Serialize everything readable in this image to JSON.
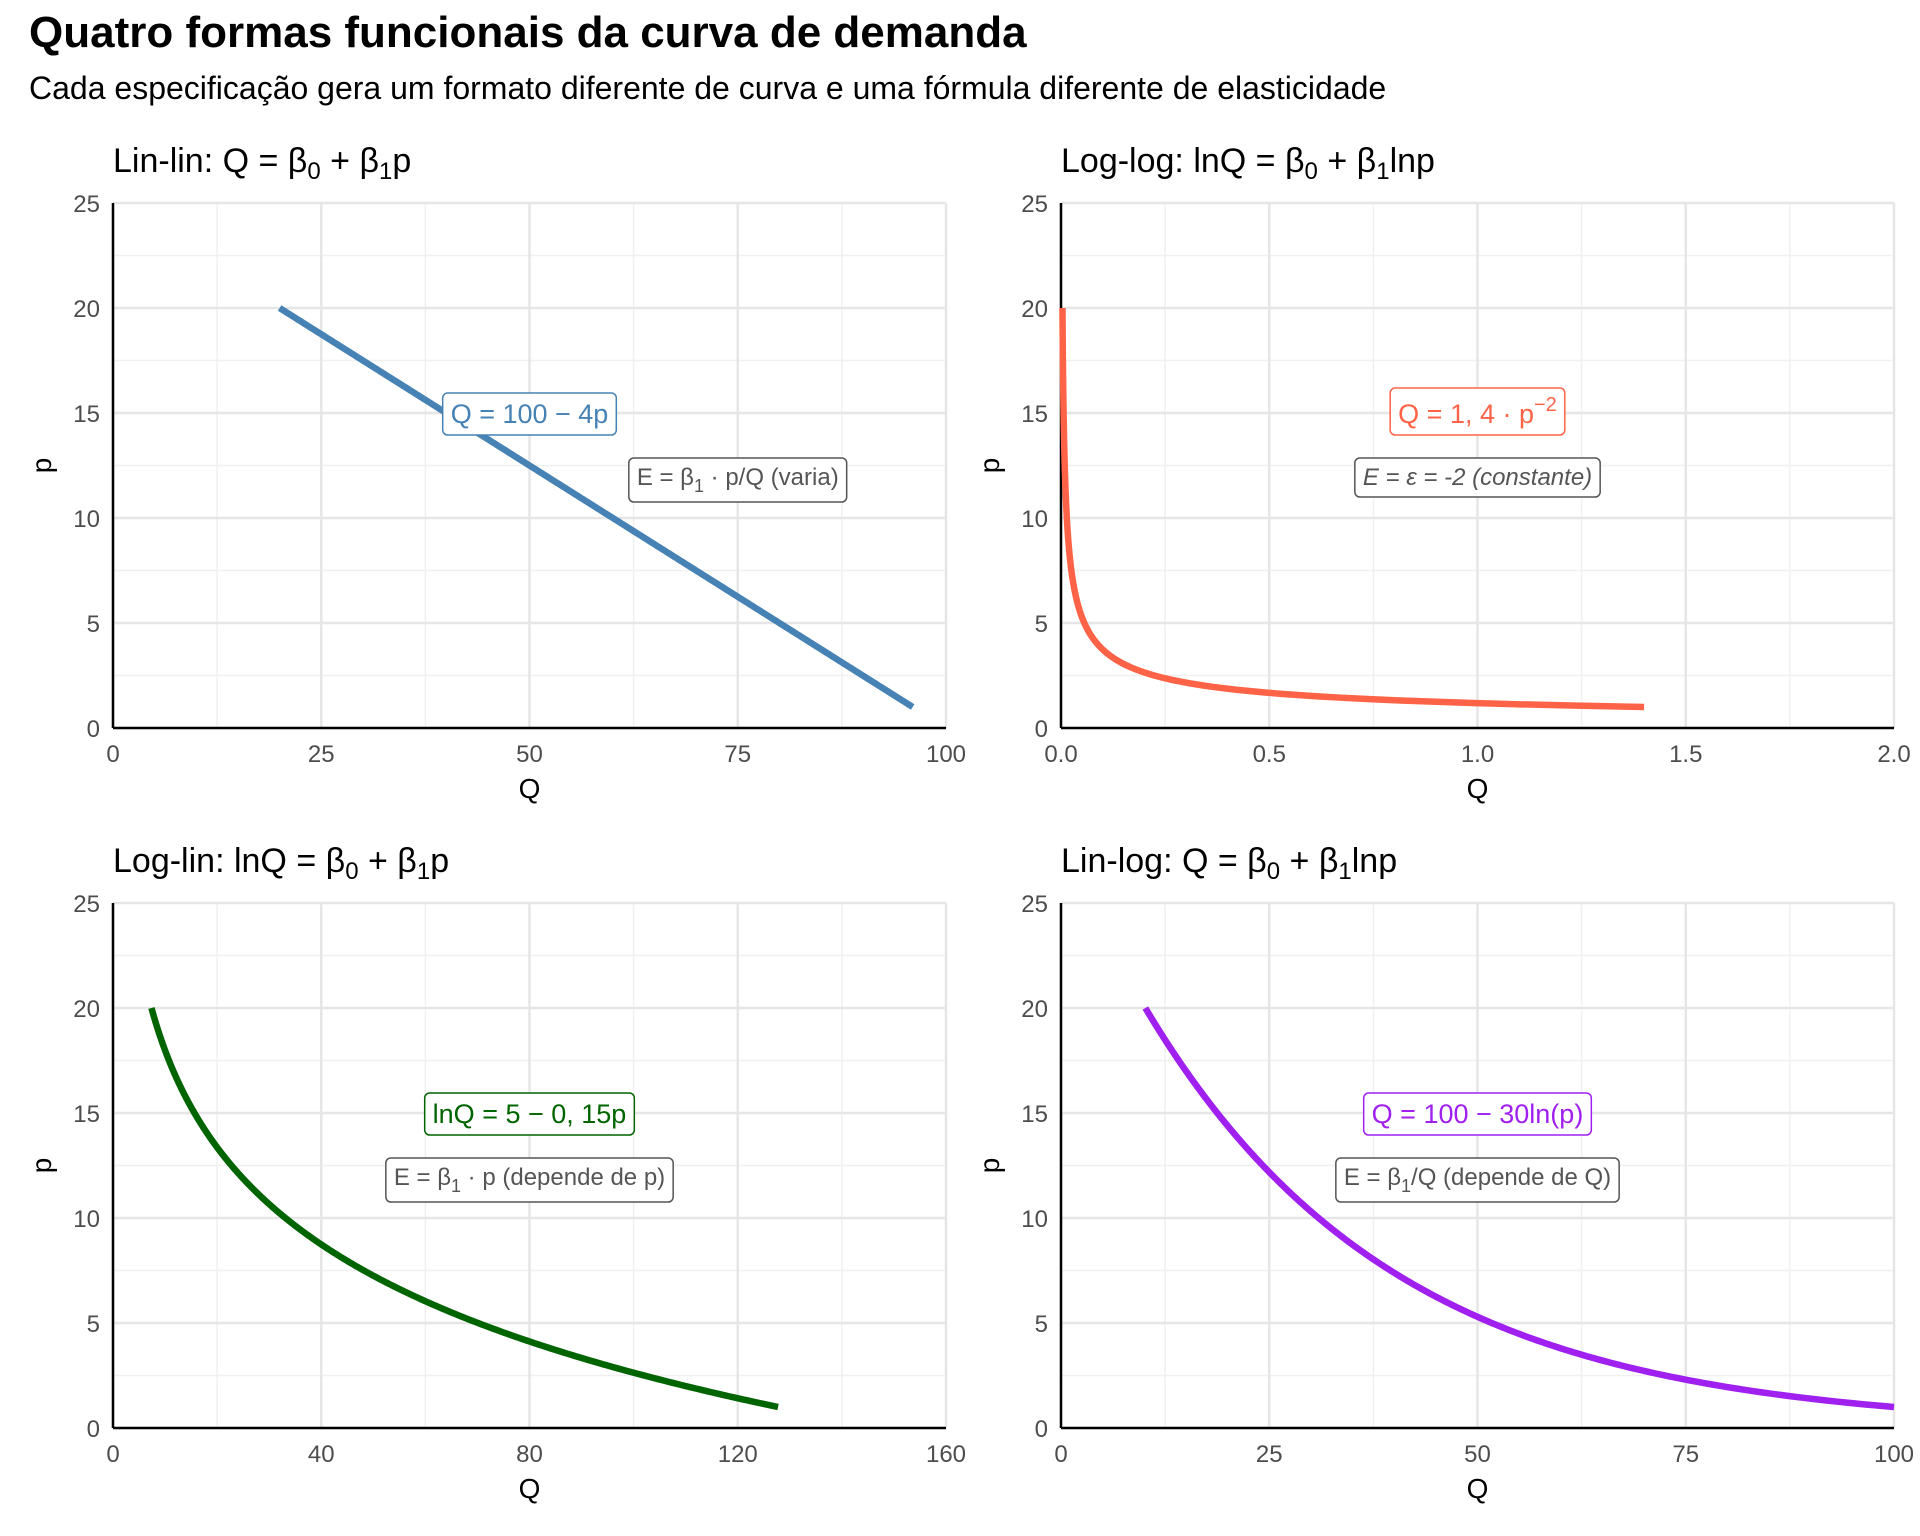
{
  "title": "Quatro formas funcionais da curva de demanda",
  "subtitle": "Cada especificação gera um formato diferente de curva e uma fórmula diferente de elasticidade",
  "chart_data": [
    {
      "type": "line",
      "id": "linlin",
      "title_parts": [
        "Lin-lin: Q = β",
        "0",
        " + β",
        "1",
        "p"
      ],
      "xlabel": "Q",
      "ylabel": "p",
      "xlim": [
        0,
        100
      ],
      "ylim": [
        0,
        25
      ],
      "xticks": [
        0,
        25,
        50,
        75,
        100
      ],
      "xtick_labels": [
        "0",
        "25",
        "50",
        "75",
        "100"
      ],
      "yticks": [
        0,
        5,
        10,
        15,
        20,
        25
      ],
      "ytick_labels": [
        "0",
        "5",
        "10",
        "15",
        "20",
        "25"
      ],
      "color": "#4682B4",
      "curve": "linear",
      "params": {
        "b0": 100,
        "b1": 4
      },
      "p_range": [
        1,
        20
      ],
      "equation_parts": [
        "Q = 100 − 4p"
      ],
      "equation_at": [
        50,
        15
      ],
      "elasticity_parts": [
        "E = β",
        "1",
        " · p/Q (varia)"
      ],
      "elasticity_at": [
        75,
        12
      ],
      "elasticity_italic": false
    },
    {
      "type": "line",
      "id": "loglog",
      "title_parts": [
        "Log-log: lnQ = β",
        "0",
        " + β",
        "1",
        "lnp"
      ],
      "xlabel": "Q",
      "ylabel": "p",
      "xlim": [
        0,
        2
      ],
      "ylim": [
        0,
        25
      ],
      "xticks": [
        0,
        0.5,
        1,
        1.5,
        2
      ],
      "xtick_labels": [
        "0.0",
        "0.5",
        "1.0",
        "1.5",
        "2.0"
      ],
      "yticks": [
        0,
        5,
        10,
        15,
        20,
        25
      ],
      "ytick_labels": [
        "0",
        "5",
        "10",
        "15",
        "20",
        "25"
      ],
      "color": "#FF6347",
      "curve": "power",
      "params": {
        "a": 1.4,
        "e": -2
      },
      "p_range": [
        1,
        20
      ],
      "equation_parts": [
        "Q = 1, 4 · p",
        "−2"
      ],
      "equation_at": [
        1,
        15
      ],
      "elasticity_parts": [
        "E = ε = -2 (constante)"
      ],
      "elasticity_at": [
        1,
        12
      ],
      "elasticity_italic": true
    },
    {
      "type": "line",
      "id": "loglin",
      "title_parts": [
        "Log-lin: lnQ = β",
        "0",
        " + β",
        "1",
        "p"
      ],
      "xlabel": "Q",
      "ylabel": "p",
      "xlim": [
        0,
        160
      ],
      "ylim": [
        0,
        25
      ],
      "xticks": [
        0,
        40,
        80,
        120,
        160
      ],
      "xtick_labels": [
        "0",
        "40",
        "80",
        "120",
        "160"
      ],
      "yticks": [
        0,
        5,
        10,
        15,
        20,
        25
      ],
      "ytick_labels": [
        "0",
        "5",
        "10",
        "15",
        "20",
        "25"
      ],
      "color": "#006400",
      "curve": "exp",
      "params": {
        "b0": 5,
        "b1": 0.15
      },
      "p_range": [
        1,
        20
      ],
      "equation_parts": [
        "lnQ = 5 − 0, 15p"
      ],
      "equation_at": [
        80,
        15
      ],
      "elasticity_parts": [
        "E = β",
        "1",
        " · p (depende de p)"
      ],
      "elasticity_at": [
        80,
        12
      ],
      "elasticity_italic": false
    },
    {
      "type": "line",
      "id": "linlog",
      "title_parts": [
        "Lin-log: Q = β",
        "0",
        " + β",
        "1",
        "lnp"
      ],
      "xlabel": "Q",
      "ylabel": "p",
      "xlim": [
        0,
        100
      ],
      "ylim": [
        0,
        25
      ],
      "xticks": [
        0,
        25,
        50,
        75,
        100
      ],
      "xtick_labels": [
        "0",
        "25",
        "50",
        "75",
        "100"
      ],
      "yticks": [
        0,
        5,
        10,
        15,
        20,
        25
      ],
      "ytick_labels": [
        "0",
        "5",
        "10",
        "15",
        "20",
        "25"
      ],
      "color": "#A020F0",
      "curve": "log",
      "params": {
        "b0": 100,
        "b1": 30
      },
      "p_range": [
        1,
        20
      ],
      "equation_parts": [
        "Q = 100 − 30ln(p)"
      ],
      "equation_at": [
        50,
        15
      ],
      "elasticity_parts": [
        "E = β",
        "1",
        "/Q (depende de Q)"
      ],
      "elasticity_at": [
        50,
        12
      ],
      "elasticity_italic": false
    }
  ]
}
